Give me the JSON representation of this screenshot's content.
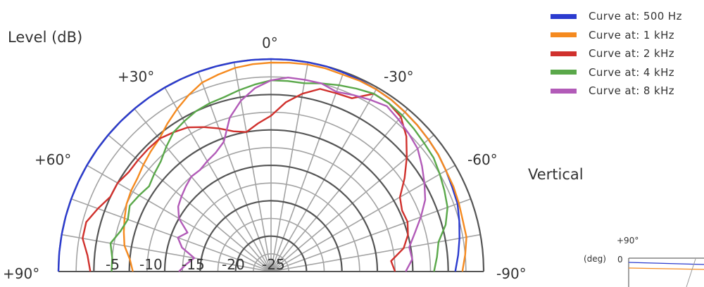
{
  "title_level": "Level (dB)",
  "side_label": "Vertical",
  "angle_labels": {
    "a0": "0°",
    "pos30": "+30°",
    "neg30": "-30°",
    "pos60": "+60°",
    "neg60": "-60°",
    "pos90": "+90°",
    "neg90": "-90°"
  },
  "inset": {
    "angle_label": "+90°",
    "unit_label": "(deg)",
    "zero_label": "0"
  },
  "colors": {
    "c500": "#2b3bcf",
    "c1k": "#f58a1f",
    "c2k": "#d0312d",
    "c4k": "#5aa84a",
    "c8k": "#b25bb8",
    "grid": "#a3a3a3",
    "grid_dark": "#555555"
  },
  "chart_data": {
    "type": "polar",
    "r_axis": {
      "max": 0,
      "min": -30,
      "ring_labels": [
        "-5",
        "-10",
        "-15",
        "-20",
        "-25"
      ]
    },
    "theta_range_deg": [
      -90,
      90
    ],
    "series": [
      {
        "name": "Curve at: 500 Hz",
        "color": "#2b3bcf",
        "angles": [
          -90,
          -85,
          -80,
          -75,
          -70,
          -65,
          -60,
          -55,
          -50,
          -45,
          -40,
          -35,
          -30,
          -25,
          -20,
          -15,
          -10,
          -5,
          0,
          5,
          10,
          15,
          20,
          25,
          30,
          35,
          40,
          45,
          50,
          55,
          60,
          65,
          70,
          75,
          80,
          85,
          90
        ],
        "levels": [
          -4,
          -3.5,
          -3,
          -2.5,
          -2,
          -1.8,
          -1.5,
          -1.2,
          -1,
          -0.8,
          -0.6,
          -0.4,
          -0.3,
          -0.2,
          -0.1,
          0,
          0,
          0,
          0,
          0,
          0,
          0,
          0,
          0,
          0,
          0,
          0,
          0,
          0,
          0,
          0,
          0,
          0,
          0,
          0,
          0,
          0
        ]
      },
      {
        "name": "Curve at: 1 kHz",
        "color": "#f58a1f",
        "angles": [
          -90,
          -85,
          -80,
          -75,
          -70,
          -65,
          -60,
          -55,
          -50,
          -45,
          -40,
          -35,
          -30,
          -25,
          -20,
          -15,
          -10,
          -5,
          0,
          5,
          10,
          15,
          20,
          25,
          30,
          35,
          40,
          45,
          50,
          55,
          60,
          65,
          70,
          75,
          80,
          85,
          90
        ],
        "levels": [
          -3,
          -2.5,
          -2,
          -2,
          -1.8,
          -1.6,
          -1.5,
          -1.2,
          -1,
          -0.8,
          -0.6,
          -0.4,
          -0.3,
          -0.3,
          -0.4,
          -0.3,
          -0.3,
          -0.4,
          -0.5,
          -0.6,
          -0.8,
          -1.2,
          -1.6,
          -2.5,
          -3.5,
          -4.5,
          -5.5,
          -6,
          -6.5,
          -7,
          -7.2,
          -7.5,
          -8,
          -8.5,
          -9,
          -10,
          -10.5
        ]
      },
      {
        "name": "Curve at: 2 kHz",
        "color": "#d0312d",
        "angles": [
          -90,
          -85,
          -80,
          -75,
          -70,
          -65,
          -60,
          -55,
          -50,
          -45,
          -40,
          -35,
          -30,
          -25,
          -20,
          -15,
          -10,
          -5,
          0,
          5,
          10,
          15,
          20,
          25,
          30,
          35,
          40,
          45,
          50,
          55,
          60,
          65,
          70,
          75,
          80,
          85,
          90
        ],
        "levels": [
          -12.5,
          -13,
          -11,
          -10,
          -9.5,
          -9.6,
          -9,
          -7,
          -5,
          -3,
          -1.5,
          -1,
          -1,
          -3,
          -3.2,
          -3.3,
          -4.5,
          -6,
          -8,
          -9,
          -10,
          -9.5,
          -8.5,
          -7.5,
          -6.5,
          -6,
          -5.5,
          -5.5,
          -5.5,
          -5.5,
          -5,
          -5,
          -4,
          -3,
          -3,
          -4,
          -4.5
        ]
      },
      {
        "name": "Curve at: 4 kHz",
        "color": "#5aa84a",
        "angles": [
          -90,
          -85,
          -80,
          -75,
          -70,
          -65,
          -60,
          -55,
          -50,
          -45,
          -40,
          -35,
          -30,
          -25,
          -20,
          -15,
          -10,
          -5,
          0,
          5,
          10,
          15,
          20,
          25,
          30,
          35,
          40,
          45,
          50,
          55,
          60,
          65,
          70,
          75,
          80,
          85,
          90
        ],
        "levels": [
          -7,
          -6.5,
          -6,
          -4.5,
          -3.5,
          -3,
          -2.5,
          -2,
          -1.8,
          -1.5,
          -1.2,
          -1,
          -1,
          -1.5,
          -2,
          -2.5,
          -3,
          -3,
          -3,
          -3.5,
          -4,
          -4.5,
          -4.7,
          -5,
          -5.5,
          -6,
          -7,
          -8,
          -8.5,
          -9,
          -8.5,
          -8,
          -8.5,
          -8,
          -7,
          -7.5,
          -7.5
        ]
      },
      {
        "name": "Curve at: 8 kHz",
        "color": "#b25bb8",
        "angles": [
          -90,
          -85,
          -80,
          -75,
          -70,
          -65,
          -60,
          -55,
          -50,
          -45,
          -40,
          -35,
          -30,
          -25,
          -20,
          -15,
          -10,
          -5,
          0,
          5,
          10,
          15,
          20,
          25,
          30,
          35,
          40,
          45,
          50,
          55,
          60,
          65,
          70,
          75,
          80,
          85,
          90
        ],
        "levels": [
          -11,
          -10,
          -10.2,
          -9,
          -7.5,
          -6,
          -5,
          -4,
          -3,
          -2.5,
          -2,
          -1.5,
          -2,
          -2.5,
          -3,
          -2.5,
          -2.5,
          -2.5,
          -3,
          -4,
          -5.5,
          -7.5,
          -10.5,
          -11.5,
          -12,
          -12.5,
          -12.5,
          -13,
          -13.5,
          -14,
          -15,
          -17,
          -16,
          -17,
          -19,
          -18,
          -17
        ]
      }
    ]
  }
}
